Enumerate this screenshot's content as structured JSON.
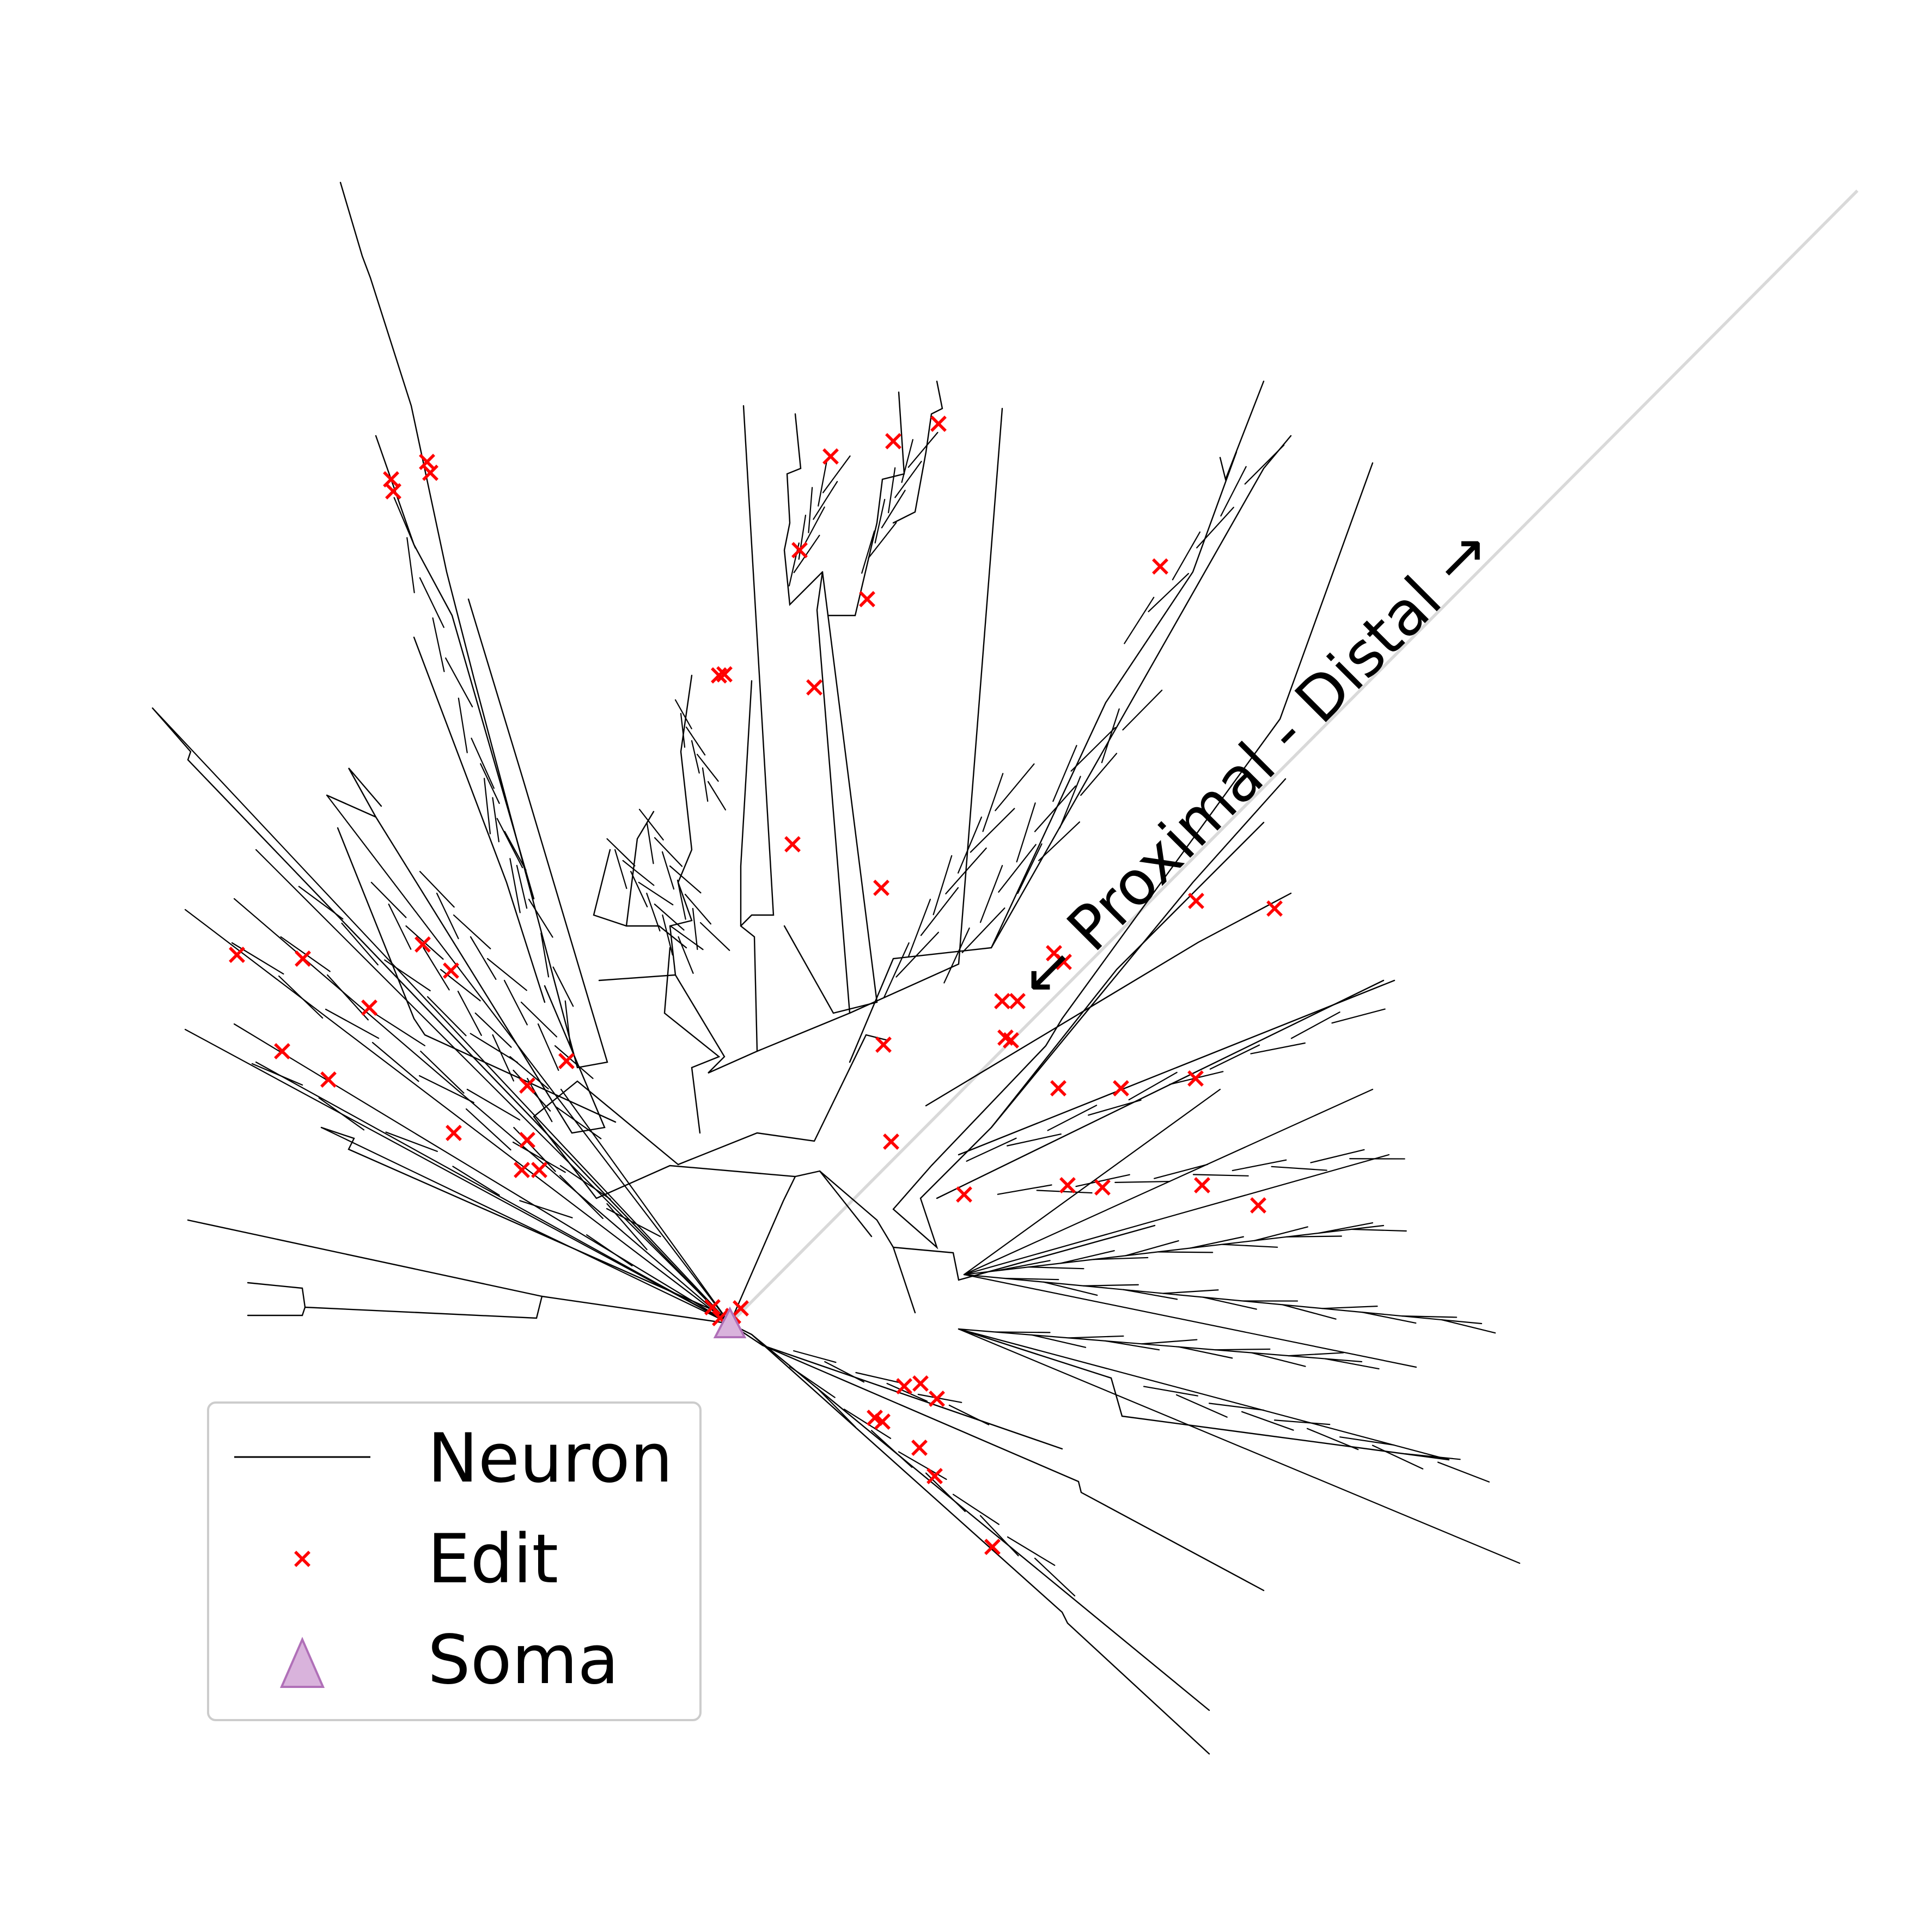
{
  "diagram": {
    "axis_label": "←  Proximal - Distal  →",
    "colors": {
      "neuron": "#000000",
      "edit": "#ff0000",
      "soma_fill": "#d9b3dc",
      "soma_stroke": "#b070b8",
      "axis_line": "#d9d9d9",
      "legend_border": "#cccccc"
    }
  },
  "legend": {
    "placement": "lower-left",
    "items": [
      {
        "label": "Neuron",
        "marker": "line"
      },
      {
        "label": "Edit",
        "marker": "x"
      },
      {
        "label": "Soma",
        "marker": "triangle"
      }
    ]
  }
}
